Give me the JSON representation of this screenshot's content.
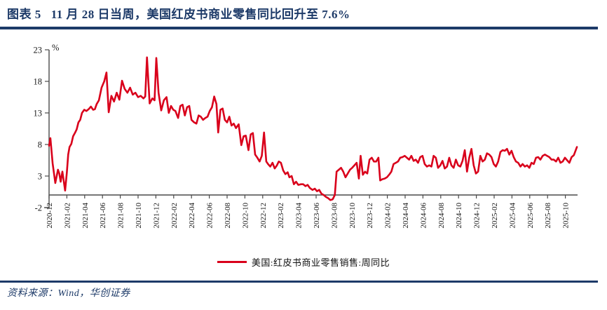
{
  "header": {
    "figure_label": "图表 5",
    "title": "11 月 28 日当周，美国红皮书商业零售同比回升至 7.6%"
  },
  "footer": {
    "source": "资料来源：Wind，华创证券"
  },
  "colors": {
    "navy": "#1d3a68",
    "line_red": "#d9001b",
    "axis_gray": "#4a4a4a"
  },
  "chart_data": {
    "type": "line",
    "title": "",
    "unit_label": "%",
    "ylim": [
      -2,
      23
    ],
    "yticks": [
      23,
      18,
      13,
      8,
      3,
      -2
    ],
    "x_axis_at": 0,
    "grid": false,
    "legend_position": "bottom-center",
    "xtick_labels": [
      "2020-12",
      "2021-02",
      "2021-04",
      "2021-06",
      "2021-08",
      "2021-10",
      "2021-12",
      "2022-02",
      "2022-04",
      "2022-06",
      "2022-08",
      "2022-10",
      "2022-12",
      "2023-02",
      "2023-04",
      "2023-06",
      "2023-08",
      "2023-10",
      "2023-12",
      "2024-02",
      "2024-04",
      "2024-06",
      "2024-08",
      "2024-10",
      "2024-12",
      "2025-02",
      "2025-04",
      "2025-06",
      "2025-08",
      "2025-10"
    ],
    "x_unit": "months_since_2020-12",
    "series": [
      {
        "name": "美国:红皮书商业零售销售:周同比",
        "color": "#d9001b",
        "last_value": 7.6,
        "last_date": "2025-11-28",
        "points": [
          [
            0,
            7.8
          ],
          [
            0.15,
            9.0
          ],
          [
            0.4,
            5.0
          ],
          [
            0.7,
            1.9
          ],
          [
            1.0,
            4.0
          ],
          [
            1.15,
            3.4
          ],
          [
            1.3,
            2.1
          ],
          [
            1.5,
            3.7
          ],
          [
            1.8,
            0.7
          ],
          [
            2.0,
            3.6
          ],
          [
            2.15,
            6.4
          ],
          [
            2.3,
            7.6
          ],
          [
            2.5,
            8.1
          ],
          [
            2.7,
            9.3
          ],
          [
            2.9,
            9.8
          ],
          [
            3.1,
            10.4
          ],
          [
            3.3,
            11.5
          ],
          [
            3.5,
            11.9
          ],
          [
            3.7,
            13.0
          ],
          [
            3.95,
            13.5
          ],
          [
            4.2,
            13.3
          ],
          [
            4.45,
            13.6
          ],
          [
            4.7,
            14.0
          ],
          [
            4.95,
            13.5
          ],
          [
            5.15,
            13.6
          ],
          [
            5.35,
            14.4
          ],
          [
            5.6,
            15.0
          ],
          [
            5.9,
            17.0
          ],
          [
            6.2,
            18.0
          ],
          [
            6.45,
            19.4
          ],
          [
            6.7,
            13.1
          ],
          [
            7.0,
            15.7
          ],
          [
            7.3,
            14.8
          ],
          [
            7.6,
            16.2
          ],
          [
            7.9,
            15.1
          ],
          [
            8.2,
            18.1
          ],
          [
            8.5,
            16.8
          ],
          [
            8.8,
            16.2
          ],
          [
            9.1,
            17.0
          ],
          [
            9.4,
            15.9
          ],
          [
            9.7,
            16.2
          ],
          [
            10.0,
            15.5
          ],
          [
            10.3,
            15.7
          ],
          [
            10.6,
            15.3
          ],
          [
            10.8,
            15.6
          ],
          [
            11.0,
            21.8
          ],
          [
            11.3,
            14.5
          ],
          [
            11.6,
            15.3
          ],
          [
            11.85,
            15.0
          ],
          [
            12.05,
            21.7
          ],
          [
            12.3,
            16.2
          ],
          [
            12.6,
            13.4
          ],
          [
            12.9,
            15.0
          ],
          [
            13.2,
            15.5
          ],
          [
            13.45,
            13.0
          ],
          [
            13.7,
            14.1
          ],
          [
            13.95,
            13.5
          ],
          [
            14.2,
            13.3
          ],
          [
            14.5,
            12.2
          ],
          [
            14.75,
            14.1
          ],
          [
            15.0,
            14.3
          ],
          [
            15.25,
            12.6
          ],
          [
            15.5,
            13.9
          ],
          [
            15.75,
            14.1
          ],
          [
            16.0,
            11.9
          ],
          [
            16.3,
            11.5
          ],
          [
            16.55,
            11.3
          ],
          [
            16.8,
            12.6
          ],
          [
            17.05,
            12.4
          ],
          [
            17.3,
            11.9
          ],
          [
            17.55,
            12.2
          ],
          [
            17.8,
            12.4
          ],
          [
            18.05,
            13.3
          ],
          [
            18.3,
            13.9
          ],
          [
            18.55,
            15.6
          ],
          [
            18.8,
            14.4
          ],
          [
            19.0,
            9.9
          ],
          [
            19.25,
            13.5
          ],
          [
            19.5,
            13.7
          ],
          [
            19.75,
            11.9
          ],
          [
            20.0,
            11.5
          ],
          [
            20.25,
            12.4
          ],
          [
            20.5,
            11.0
          ],
          [
            20.75,
            11.3
          ],
          [
            21.0,
            10.6
          ],
          [
            21.3,
            11.2
          ],
          [
            21.6,
            7.9
          ],
          [
            21.85,
            9.3
          ],
          [
            22.1,
            9.4
          ],
          [
            22.4,
            7.1
          ],
          [
            22.65,
            9.6
          ],
          [
            22.9,
            9.8
          ],
          [
            23.15,
            6.4
          ],
          [
            23.4,
            5.9
          ],
          [
            23.65,
            5.3
          ],
          [
            23.9,
            6.2
          ],
          [
            24.15,
            9.9
          ],
          [
            24.4,
            5.3
          ],
          [
            24.6,
            4.9
          ],
          [
            24.85,
            4.5
          ],
          [
            25.1,
            5.1
          ],
          [
            25.35,
            4.2
          ],
          [
            25.6,
            4.7
          ],
          [
            25.8,
            5.3
          ],
          [
            26.05,
            5.1
          ],
          [
            26.3,
            3.9
          ],
          [
            26.55,
            3.3
          ],
          [
            26.8,
            3.6
          ],
          [
            27.0,
            2.8
          ],
          [
            27.25,
            3.0
          ],
          [
            27.5,
            1.7
          ],
          [
            27.75,
            2.1
          ],
          [
            28.0,
            1.6
          ],
          [
            28.3,
            1.7
          ],
          [
            28.55,
            1.7
          ],
          [
            28.8,
            1.4
          ],
          [
            29.05,
            1.6
          ],
          [
            29.3,
            1.1
          ],
          [
            29.6,
            0.8
          ],
          [
            29.85,
            1.0
          ],
          [
            30.1,
            0.6
          ],
          [
            30.35,
            0.8
          ],
          [
            30.6,
            0.2
          ],
          [
            30.85,
            0.0
          ],
          [
            31.1,
            -0.3
          ],
          [
            31.35,
            -0.5
          ],
          [
            31.6,
            -0.8
          ],
          [
            31.85,
            -0.7
          ],
          [
            32.1,
            0.0
          ],
          [
            32.3,
            3.7
          ],
          [
            32.55,
            4.0
          ],
          [
            32.8,
            4.3
          ],
          [
            33.05,
            3.7
          ],
          [
            33.3,
            2.8
          ],
          [
            33.55,
            3.4
          ],
          [
            33.8,
            4.0
          ],
          [
            34.05,
            4.3
          ],
          [
            34.3,
            4.7
          ],
          [
            34.55,
            5.1
          ],
          [
            34.8,
            2.6
          ],
          [
            35.0,
            6.2
          ],
          [
            35.25,
            3.2
          ],
          [
            35.5,
            3.7
          ],
          [
            35.75,
            3.4
          ],
          [
            36.0,
            5.6
          ],
          [
            36.25,
            5.9
          ],
          [
            36.5,
            5.3
          ],
          [
            36.75,
            5.3
          ],
          [
            37.0,
            5.9
          ],
          [
            37.2,
            2.3
          ],
          [
            37.45,
            2.5
          ],
          [
            37.7,
            2.6
          ],
          [
            37.95,
            2.8
          ],
          [
            38.2,
            3.2
          ],
          [
            38.45,
            3.7
          ],
          [
            38.7,
            4.9
          ],
          [
            38.95,
            5.1
          ],
          [
            39.2,
            5.3
          ],
          [
            39.45,
            5.9
          ],
          [
            39.7,
            6.0
          ],
          [
            39.95,
            6.2
          ],
          [
            40.2,
            5.9
          ],
          [
            40.45,
            5.6
          ],
          [
            40.7,
            6.2
          ],
          [
            40.95,
            5.4
          ],
          [
            41.2,
            5.6
          ],
          [
            41.45,
            5.1
          ],
          [
            41.7,
            6.0
          ],
          [
            41.95,
            6.2
          ],
          [
            42.2,
            4.9
          ],
          [
            42.45,
            4.5
          ],
          [
            42.7,
            4.7
          ],
          [
            42.95,
            4.5
          ],
          [
            43.2,
            6.2
          ],
          [
            43.45,
            5.9
          ],
          [
            43.7,
            4.3
          ],
          [
            43.95,
            4.7
          ],
          [
            44.2,
            5.4
          ],
          [
            44.45,
            4.2
          ],
          [
            44.7,
            4.5
          ],
          [
            44.95,
            5.9
          ],
          [
            45.2,
            4.7
          ],
          [
            45.45,
            4.3
          ],
          [
            45.7,
            5.6
          ],
          [
            45.95,
            4.7
          ],
          [
            46.2,
            4.5
          ],
          [
            46.45,
            5.4
          ],
          [
            46.7,
            7.1
          ],
          [
            46.95,
            3.7
          ],
          [
            47.2,
            5.9
          ],
          [
            47.45,
            7.3
          ],
          [
            47.7,
            4.7
          ],
          [
            47.95,
            3.4
          ],
          [
            48.2,
            3.7
          ],
          [
            48.45,
            6.2
          ],
          [
            48.7,
            5.3
          ],
          [
            48.95,
            5.6
          ],
          [
            49.2,
            6.6
          ],
          [
            49.45,
            6.4
          ],
          [
            49.7,
            6.0
          ],
          [
            49.95,
            4.9
          ],
          [
            50.2,
            4.5
          ],
          [
            50.45,
            5.3
          ],
          [
            50.7,
            6.8
          ],
          [
            50.95,
            7.1
          ],
          [
            51.2,
            7.0
          ],
          [
            51.45,
            7.3
          ],
          [
            51.7,
            6.4
          ],
          [
            51.95,
            7.0
          ],
          [
            52.2,
            6.0
          ],
          [
            52.45,
            5.3
          ],
          [
            52.7,
            5.1
          ],
          [
            52.95,
            4.5
          ],
          [
            53.2,
            4.9
          ],
          [
            53.45,
            4.5
          ],
          [
            53.7,
            4.7
          ],
          [
            53.95,
            4.3
          ],
          [
            54.2,
            5.1
          ],
          [
            54.45,
            4.9
          ],
          [
            54.7,
            5.9
          ],
          [
            54.95,
            6.0
          ],
          [
            55.2,
            5.6
          ],
          [
            55.45,
            6.2
          ],
          [
            55.7,
            6.4
          ],
          [
            55.95,
            6.2
          ],
          [
            56.2,
            6.0
          ],
          [
            56.45,
            5.6
          ],
          [
            56.7,
            5.6
          ],
          [
            56.95,
            5.3
          ],
          [
            57.2,
            5.9
          ],
          [
            57.45,
            5.1
          ],
          [
            57.7,
            5.3
          ],
          [
            57.95,
            5.9
          ],
          [
            58.2,
            5.5
          ],
          [
            58.45,
            5.1
          ],
          [
            58.7,
            6.0
          ],
          [
            58.95,
            6.3
          ],
          [
            59.3,
            7.6
          ]
        ]
      }
    ]
  }
}
